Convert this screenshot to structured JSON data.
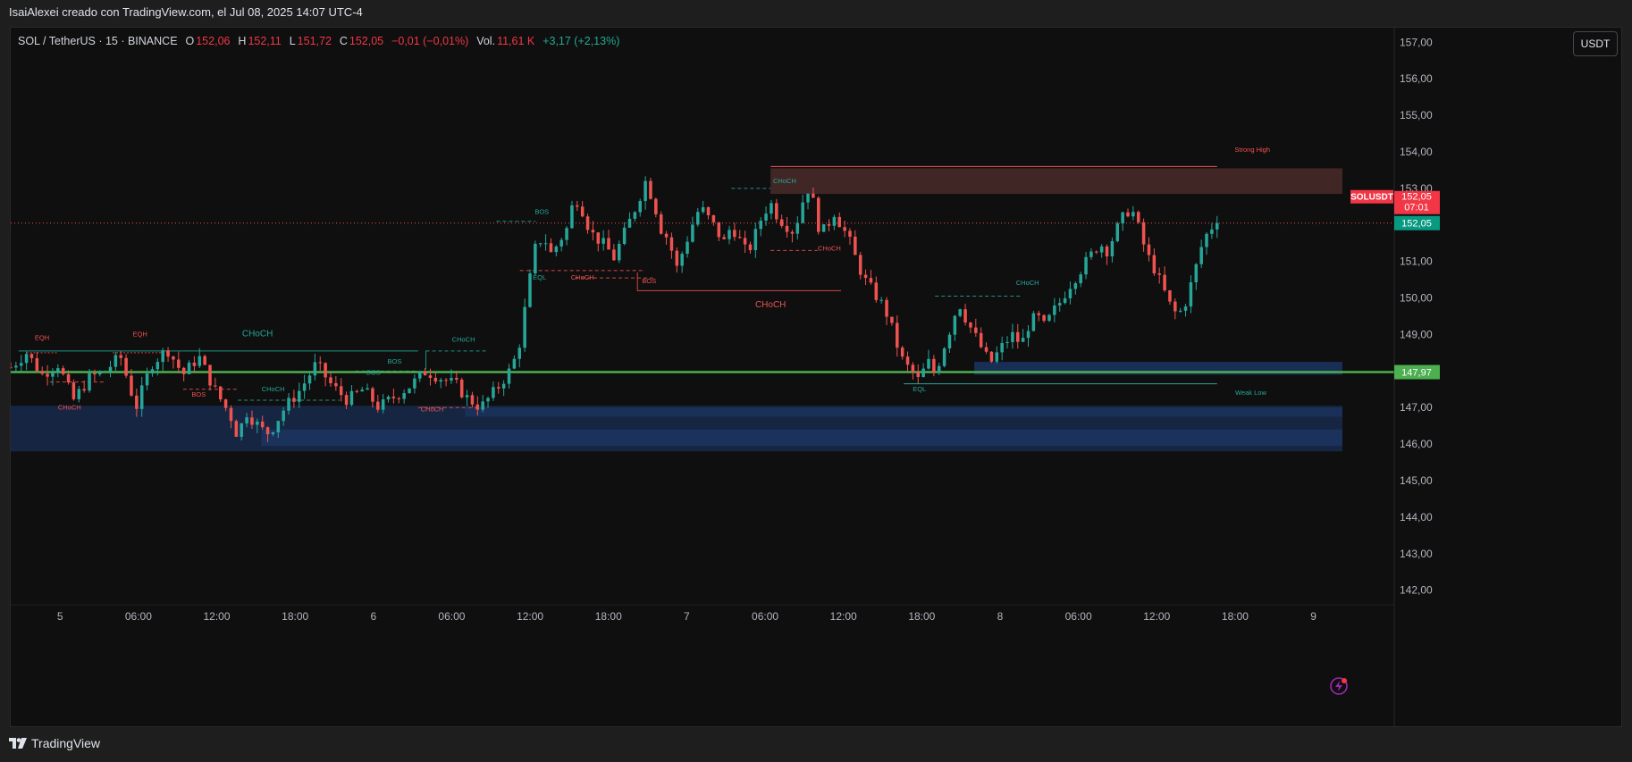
{
  "caption": "IsaiAlexei creado con TradingView.com, el Jul 08, 2025 14:07 UTC-4",
  "legend": {
    "symbol": "SOL / TetherUS · 15 · BINANCE",
    "o_label": "O",
    "o": "152,06",
    "h_label": "H",
    "h": "152,11",
    "l_label": "L",
    "l": "151,72",
    "c_label": "C",
    "c": "152,05",
    "change": "−0,01 (−0,01%)",
    "vol_label": "Vol.",
    "vol": "11,61 K",
    "vol_change": "+3,17 (+2,13%)"
  },
  "currency_button": "USDT",
  "footer_brand": "TradingView",
  "colors": {
    "background": "#0f0f0f",
    "bull": "#26a69a",
    "bear": "#ef5350",
    "support": "#4caf50",
    "demand_zone": "#1e3a6e",
    "supply_zone": "#4a2a2a"
  },
  "chart_data": {
    "type": "candlestick",
    "y_range": [
      141.6,
      157.4
    ],
    "x_range": [
      0,
      170
    ],
    "y_ticks": [
      "157,00",
      "156,00",
      "155,00",
      "154,00",
      "153,00",
      "152,00",
      "151,00",
      "150,00",
      "149,00",
      "148,00",
      "147,00",
      "146,00",
      "145,00",
      "144,00",
      "143,00",
      "142,00"
    ],
    "y_tick_values": [
      157,
      156,
      155,
      154,
      153,
      152,
      151,
      150,
      149,
      148,
      147,
      146,
      145,
      144,
      143,
      142
    ],
    "x_ticks": [
      {
        "label": "5",
        "x": 6.3
      },
      {
        "label": "06:00",
        "x": 16.3
      },
      {
        "label": "12:00",
        "x": 26.3
      },
      {
        "label": "18:00",
        "x": 36.3
      },
      {
        "label": "6",
        "x": 46.3
      },
      {
        "label": "06:00",
        "x": 56.3
      },
      {
        "label": "12:00",
        "x": 66.3
      },
      {
        "label": "18:00",
        "x": 76.3
      },
      {
        "label": "7",
        "x": 86.3
      },
      {
        "label": "06:00",
        "x": 96.3
      },
      {
        "label": "12:00",
        "x": 106.3
      },
      {
        "label": "18:00",
        "x": 116.3
      },
      {
        "label": "8",
        "x": 126.3
      },
      {
        "label": "06:00",
        "x": 136.3
      },
      {
        "label": "12:00",
        "x": 146.3
      },
      {
        "label": "18:00",
        "x": 156.3
      },
      {
        "label": "9",
        "x": 166.3
      }
    ],
    "path_points": [
      [
        0,
        148.1
      ],
      [
        2,
        148.5
      ],
      [
        4,
        147.9
      ],
      [
        6,
        148.2
      ],
      [
        8,
        147.2
      ],
      [
        10,
        147.8
      ],
      [
        12,
        148.0
      ],
      [
        14,
        148.4
      ],
      [
        15,
        147.7
      ],
      [
        16,
        147.0
      ],
      [
        18,
        148.2
      ],
      [
        20,
        148.6
      ],
      [
        22,
        147.9
      ],
      [
        24,
        148.4
      ],
      [
        26,
        147.5
      ],
      [
        28,
        146.8
      ],
      [
        29,
        146.2
      ],
      [
        30,
        146.9
      ],
      [
        32,
        146.4
      ],
      [
        33,
        146.3
      ],
      [
        35,
        147.0
      ],
      [
        37,
        147.5
      ],
      [
        39,
        148.2
      ],
      [
        41,
        147.6
      ],
      [
        43,
        147.2
      ],
      [
        45,
        147.5
      ],
      [
        47,
        147.0
      ],
      [
        49,
        147.3
      ],
      [
        51,
        147.6
      ],
      [
        53,
        148.0
      ],
      [
        55,
        147.8
      ],
      [
        57,
        147.6
      ],
      [
        58,
        147.3
      ],
      [
        60,
        147.0
      ],
      [
        62,
        147.5
      ],
      [
        64,
        148.1
      ],
      [
        65,
        148.8
      ],
      [
        66,
        150.2
      ],
      [
        67,
        151.4
      ],
      [
        68,
        151.7
      ],
      [
        69,
        151.2
      ],
      [
        71,
        151.9
      ],
      [
        72,
        152.8
      ],
      [
        73,
        152.4
      ],
      [
        74,
        151.8
      ],
      [
        76,
        151.4
      ],
      [
        77,
        151.1
      ],
      [
        78,
        151.6
      ],
      [
        79,
        152.1
      ],
      [
        80,
        152.6
      ],
      [
        81,
        153.2
      ],
      [
        82,
        152.7
      ],
      [
        83,
        151.9
      ],
      [
        84,
        151.6
      ],
      [
        85,
        150.8
      ],
      [
        86,
        151.4
      ],
      [
        87,
        152.0
      ],
      [
        88,
        152.5
      ],
      [
        89,
        152.2
      ],
      [
        90,
        151.9
      ],
      [
        91,
        151.5
      ],
      [
        92,
        152.0
      ],
      [
        93,
        151.6
      ],
      [
        94,
        151.2
      ],
      [
        95,
        151.7
      ],
      [
        96,
        152.3
      ],
      [
        97,
        152.6
      ],
      [
        98,
        152.2
      ],
      [
        99,
        152.0
      ],
      [
        100,
        151.8
      ],
      [
        101,
        152.6
      ],
      [
        102,
        153.1
      ],
      [
        103,
        152.0
      ],
      [
        104,
        151.8
      ],
      [
        105,
        152.4
      ],
      [
        106,
        152.0
      ],
      [
        107,
        151.6
      ],
      [
        108,
        151.0
      ],
      [
        109,
        150.5
      ],
      [
        110,
        150.2
      ],
      [
        111,
        149.9
      ],
      [
        112,
        149.5
      ],
      [
        113,
        148.8
      ],
      [
        114,
        148.2
      ],
      [
        115,
        148.0
      ],
      [
        116,
        147.7
      ],
      [
        117,
        148.3
      ],
      [
        118,
        147.9
      ],
      [
        119,
        148.6
      ],
      [
        120,
        149.2
      ],
      [
        121,
        149.9
      ],
      [
        122,
        149.4
      ],
      [
        123,
        149.0
      ],
      [
        124,
        148.6
      ],
      [
        125,
        148.2
      ],
      [
        126,
        148.5
      ],
      [
        127,
        148.8
      ],
      [
        128,
        149.0
      ],
      [
        129,
        148.7
      ],
      [
        130,
        149.3
      ],
      [
        131,
        149.5
      ],
      [
        132,
        149.2
      ],
      [
        133,
        149.6
      ],
      [
        134,
        149.9
      ],
      [
        135,
        150.3
      ],
      [
        136,
        150.6
      ],
      [
        137,
        150.9
      ],
      [
        138,
        151.2
      ],
      [
        139,
        151.5
      ],
      [
        140,
        151.3
      ],
      [
        141,
        151.8
      ],
      [
        142,
        152.2
      ],
      [
        143,
        152.5
      ],
      [
        144,
        151.9
      ],
      [
        145,
        151.2
      ],
      [
        146,
        150.8
      ],
      [
        147,
        150.3
      ],
      [
        148,
        149.8
      ],
      [
        149,
        149.5
      ],
      [
        150,
        149.9
      ],
      [
        151,
        150.6
      ],
      [
        152,
        151.4
      ],
      [
        153,
        151.9
      ],
      [
        154,
        152.05
      ]
    ],
    "candle_count": 231,
    "last_price": "152,05",
    "countdown": "07:01",
    "ticker_tag": "SOLUSDT",
    "support_price": "147,97",
    "support_value": 147.97,
    "dotted_price_value": 152.05,
    "annotations": [
      {
        "text": "EQH",
        "x": 4.0,
        "y": 148.85,
        "color": "bear"
      },
      {
        "text": "EQH",
        "x": 16.5,
        "y": 148.95,
        "color": "bear"
      },
      {
        "text": "CHoCH",
        "x": 31.5,
        "y": 148.95,
        "color": "bull"
      },
      {
        "text": "CHoCH",
        "x": 7.5,
        "y": 146.95,
        "color": "bear"
      },
      {
        "text": "BOS",
        "x": 24.0,
        "y": 147.3,
        "color": "bear"
      },
      {
        "text": "CHoCH",
        "x": 33.5,
        "y": 147.45,
        "color": "bull"
      },
      {
        "text": "BOS",
        "x": 46.3,
        "y": 147.9,
        "color": "bull"
      },
      {
        "text": "BOS",
        "x": 49.0,
        "y": 148.2,
        "color": "bull"
      },
      {
        "text": "CHoCH",
        "x": 53.8,
        "y": 146.9,
        "color": "bear"
      },
      {
        "text": "CHoCH",
        "x": 57.8,
        "y": 148.8,
        "color": "bull"
      },
      {
        "text": "BOS",
        "x": 67.8,
        "y": 152.3,
        "color": "bull"
      },
      {
        "text": "EQL",
        "x": 67.5,
        "y": 150.5,
        "color": "bull"
      },
      {
        "text": "CHoCH",
        "x": 73.0,
        "y": 150.5,
        "color": "bear"
      },
      {
        "text": "BOS",
        "x": 81.5,
        "y": 150.4,
        "color": "bear"
      },
      {
        "text": "CHoCH",
        "x": 98.8,
        "y": 153.15,
        "color": "bull"
      },
      {
        "text": "CHoCH",
        "x": 104.5,
        "y": 151.3,
        "color": "bear"
      },
      {
        "text": "CHoCH",
        "x": 97.0,
        "y": 149.75,
        "color": "bear"
      },
      {
        "text": "CHoCH",
        "x": 129.8,
        "y": 150.35,
        "color": "bull"
      },
      {
        "text": "EQL",
        "x": 116.0,
        "y": 147.45,
        "color": "bull"
      },
      {
        "text": "Strong High",
        "x": 158.5,
        "y": 154.0,
        "color": "bear"
      },
      {
        "text": "Weak Low",
        "x": 158.3,
        "y": 147.35,
        "color": "bull"
      }
    ]
  }
}
